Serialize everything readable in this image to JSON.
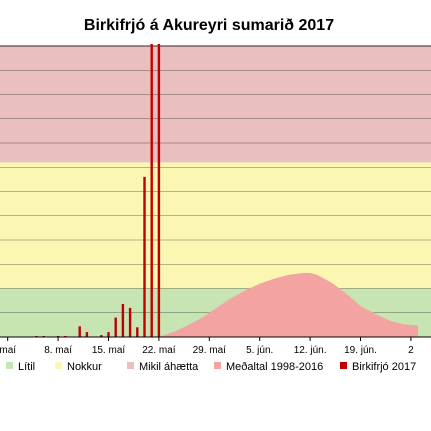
{
  "chart_data": {
    "type": "bar",
    "title": "Birkifrjó á Akureyri sumarið 2017",
    "xlabel": "",
    "ylabel": "",
    "x_start_day": 0,
    "x_end_day": 45,
    "ylim": [
      0,
      300
    ],
    "grid": true,
    "legend_position": "bottom",
    "x_ticks": [
      {
        "day": 1,
        "label": "maí"
      },
      {
        "day": 8,
        "label": "8. maí"
      },
      {
        "day": 15,
        "label": "15. maí"
      },
      {
        "day": 22,
        "label": "22. maí"
      },
      {
        "day": 29,
        "label": "29. maí"
      },
      {
        "day": 36,
        "label": "5. jún."
      },
      {
        "day": 43,
        "label": "12. jún."
      },
      {
        "day": 50,
        "label": "19. jún."
      },
      {
        "day": 57,
        "label": "2"
      }
    ],
    "bands": [
      {
        "name": "Lítil",
        "from": 0,
        "to": 50,
        "color": "#c6e5b3"
      },
      {
        "name": "Nokkur",
        "from": 50,
        "to": 180,
        "color": "#fbf7b3"
      },
      {
        "name": "Mikil áhætta",
        "from": 180,
        "to": 300,
        "color": "#e9bfbf"
      }
    ],
    "series": [
      {
        "name": "Meðaltal 1998-2016",
        "type": "area",
        "color": "#f4a3a3",
        "points": [
          [
            22,
            0
          ],
          [
            24,
            5
          ],
          [
            26,
            12
          ],
          [
            28,
            20
          ],
          [
            30,
            30
          ],
          [
            32,
            40
          ],
          [
            34,
            48
          ],
          [
            36,
            55
          ],
          [
            38,
            60
          ],
          [
            40,
            64
          ],
          [
            42,
            66
          ],
          [
            43,
            66
          ],
          [
            44,
            64
          ],
          [
            46,
            56
          ],
          [
            48,
            45
          ],
          [
            50,
            32
          ],
          [
            52,
            24
          ],
          [
            54,
            17
          ],
          [
            56,
            13
          ],
          [
            58,
            12
          ]
        ]
      },
      {
        "name": "Birkifrjó 2017",
        "type": "bar",
        "color": "#c00000",
        "points": [
          [
            5,
            1
          ],
          [
            6,
            1
          ],
          [
            8,
            1
          ],
          [
            9,
            1
          ],
          [
            11,
            11
          ],
          [
            12,
            5
          ],
          [
            14,
            2
          ],
          [
            15,
            5
          ],
          [
            16,
            20
          ],
          [
            17,
            34
          ],
          [
            18,
            30
          ],
          [
            19,
            10
          ],
          [
            20,
            165
          ],
          [
            21,
            310
          ],
          [
            22,
            310
          ]
        ]
      }
    ],
    "legend": [
      "Lítil",
      "Nokkur",
      "Mikil áhætta",
      "Meðaltal 1998-2016",
      "Birkifrjó 2017"
    ]
  }
}
